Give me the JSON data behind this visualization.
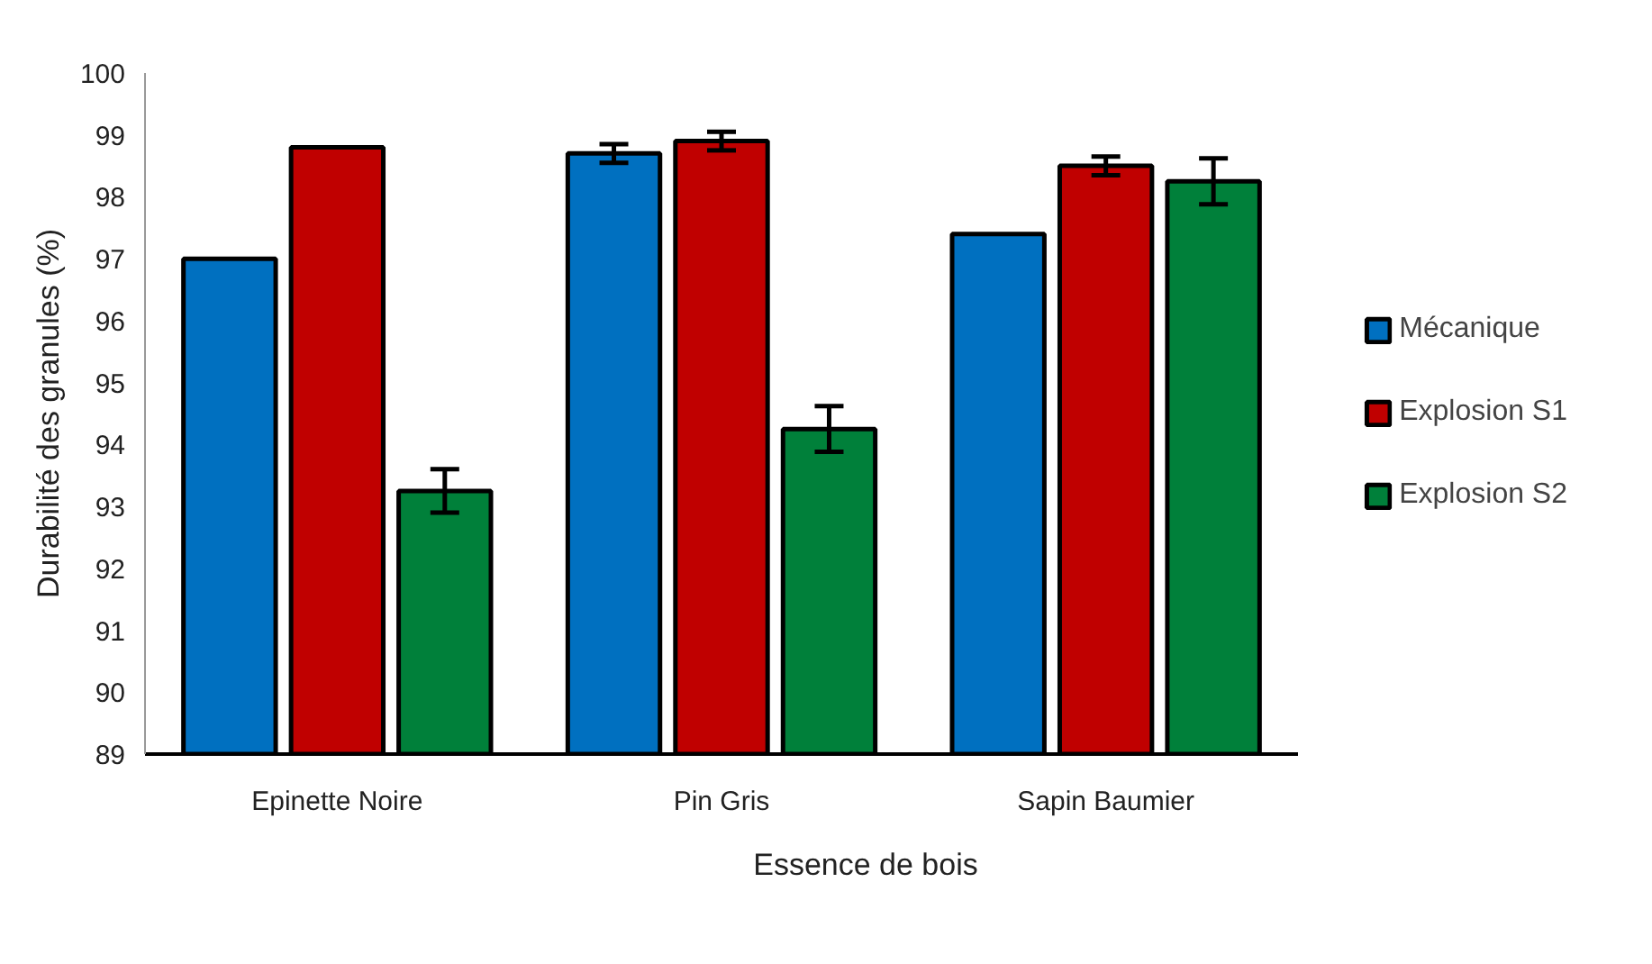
{
  "chart_data": {
    "type": "bar",
    "xlabel": "Essence de bois",
    "ylabel": "Durabilité des granules (%)",
    "categories": [
      "Epinette Noire",
      "Pin Gris",
      "Sapin Baumier"
    ],
    "series": [
      {
        "name": "Mécanique",
        "color": "#0070c0",
        "values": [
          97.0,
          98.7,
          97.4
        ],
        "errors": [
          null,
          0.15,
          null
        ]
      },
      {
        "name": "Explosion S1",
        "color": "#c00000",
        "values": [
          98.8,
          98.9,
          98.5
        ],
        "errors": [
          null,
          0.15,
          0.15
        ]
      },
      {
        "name": "Explosion S2",
        "color": "#00803a",
        "values": [
          93.25,
          94.25,
          98.25
        ],
        "errors": [
          0.35,
          0.37,
          0.37
        ]
      }
    ],
    "ylim": [
      89,
      100
    ],
    "yticks": [
      89,
      90,
      91,
      92,
      93,
      94,
      95,
      96,
      97,
      98,
      99,
      100
    ],
    "grid": false,
    "legend": "right"
  }
}
